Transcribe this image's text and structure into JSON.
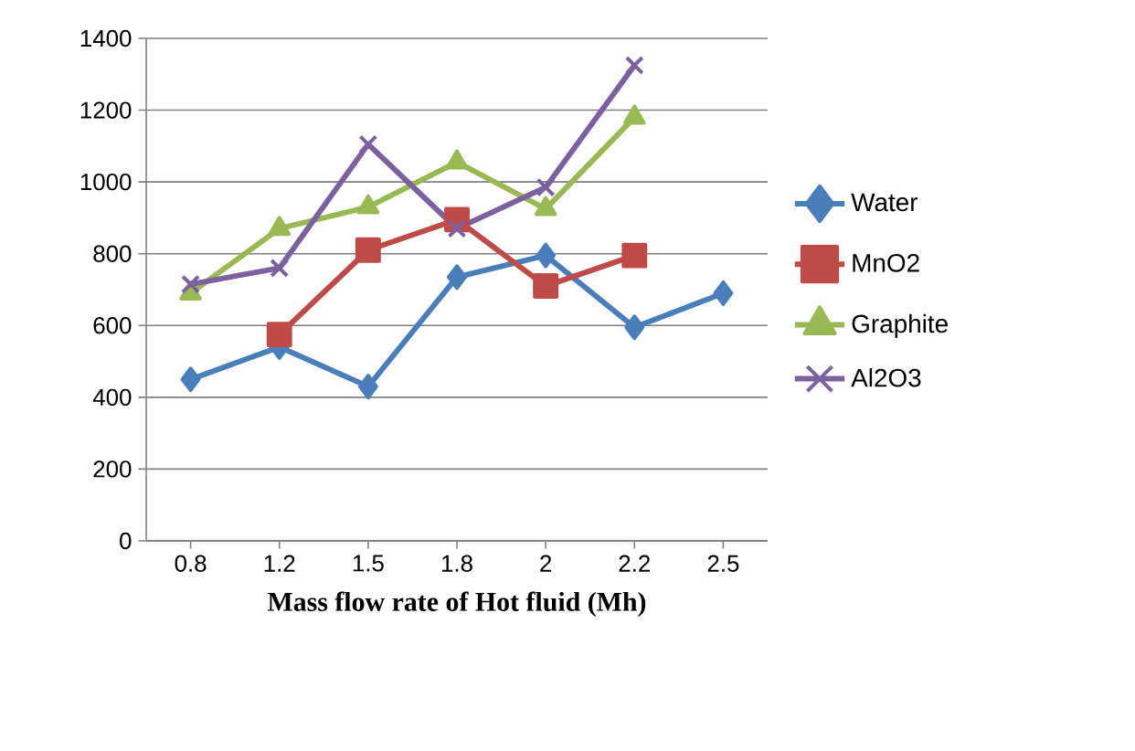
{
  "chart_data": {
    "type": "line",
    "xlabel": "Mass flow rate of Hot fluid (Mh)",
    "categories": [
      "0.8",
      "1.2",
      "1.5",
      "1.8",
      "2",
      "2.2",
      "2.5"
    ],
    "series": [
      {
        "name": "Water",
        "color": "#4a7ebb",
        "marker": "diamond",
        "values": [
          450,
          540,
          430,
          735,
          795,
          595,
          690
        ]
      },
      {
        "name": "MnO2",
        "color": "#be4b48",
        "marker": "square",
        "values": [
          null,
          575,
          810,
          895,
          710,
          795,
          null
        ]
      },
      {
        "name": "Graphite",
        "color": "#98b954",
        "marker": "triangle",
        "values": [
          690,
          870,
          930,
          1055,
          925,
          1180,
          null
        ]
      },
      {
        "name": "Al2O3",
        "color": "#7d60a0",
        "marker": "cross",
        "values": [
          715,
          760,
          1105,
          870,
          985,
          1325,
          null
        ]
      }
    ],
    "ylim": [
      0,
      1400
    ],
    "yticks": [
      0,
      200,
      400,
      600,
      800,
      1000,
      1200,
      1400
    ],
    "grid": "y",
    "legend": "right"
  }
}
